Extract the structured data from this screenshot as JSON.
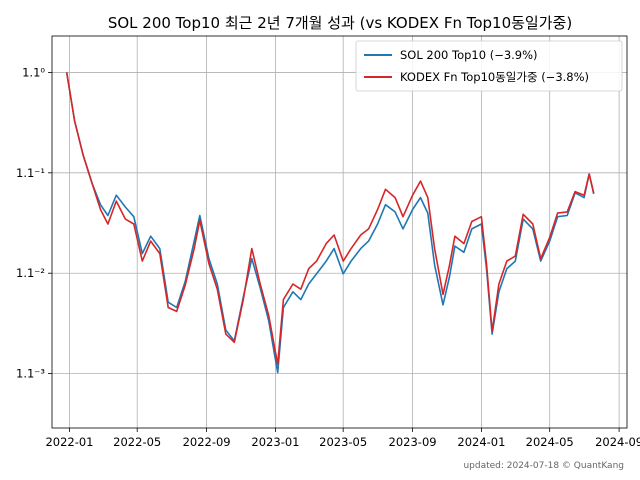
{
  "chart_data": {
    "type": "line",
    "title": "SOL 200 Top10 최근 2년 7개월 성과 (vs KODEX Fn Top10동일가중)",
    "xlabel": "",
    "ylabel": "",
    "y_scale": "log",
    "grid": true,
    "legend_position": "top-right",
    "x_ticks": [
      "2022-01",
      "2022-05",
      "2022-09",
      "2023-01",
      "2023-05",
      "2023-09",
      "2024-01",
      "2024-05",
      "2024-09"
    ],
    "y_ticks": [
      "1.1⁰",
      "1.1⁻¹",
      "1.1⁻²",
      "1.1⁻³"
    ],
    "xlim": [
      "2021-12-01",
      "2024-09-15"
    ],
    "ylim": [
      0.7135,
      1.0352
    ],
    "series": [
      {
        "name": "SOL 200 Top10 (−3.9%)",
        "color": "#1f77b4",
        "points": [
          [
            "2021-12-27",
            1.0
          ],
          [
            "2022-01-10",
            0.955
          ],
          [
            "2022-01-25",
            0.925
          ],
          [
            "2022-02-10",
            0.9
          ],
          [
            "2022-02-25",
            0.882
          ],
          [
            "2022-03-10",
            0.873
          ],
          [
            "2022-03-25",
            0.89
          ],
          [
            "2022-04-10",
            0.88
          ],
          [
            "2022-04-25",
            0.872
          ],
          [
            "2022-05-10",
            0.842
          ],
          [
            "2022-05-25",
            0.856
          ],
          [
            "2022-06-10",
            0.846
          ],
          [
            "2022-06-25",
            0.804
          ],
          [
            "2022-07-10",
            0.8
          ],
          [
            "2022-07-25",
            0.82
          ],
          [
            "2022-08-10",
            0.852
          ],
          [
            "2022-08-20",
            0.873
          ],
          [
            "2022-09-05",
            0.838
          ],
          [
            "2022-09-20",
            0.818
          ],
          [
            "2022-10-05",
            0.783
          ],
          [
            "2022-10-20",
            0.775
          ],
          [
            "2022-11-05",
            0.808
          ],
          [
            "2022-11-20",
            0.838
          ],
          [
            "2022-12-05",
            0.815
          ],
          [
            "2022-12-20",
            0.79
          ],
          [
            "2023-01-05",
            0.752
          ],
          [
            "2023-01-15",
            0.8
          ],
          [
            "2023-02-01",
            0.812
          ],
          [
            "2023-02-15",
            0.806
          ],
          [
            "2023-03-01",
            0.818
          ],
          [
            "2023-03-15",
            0.826
          ],
          [
            "2023-04-01",
            0.836
          ],
          [
            "2023-04-15",
            0.846
          ],
          [
            "2023-05-01",
            0.826
          ],
          [
            "2023-05-15",
            0.836
          ],
          [
            "2023-06-01",
            0.846
          ],
          [
            "2023-06-15",
            0.852
          ],
          [
            "2023-07-01",
            0.866
          ],
          [
            "2023-07-15",
            0.882
          ],
          [
            "2023-08-01",
            0.876
          ],
          [
            "2023-08-15",
            0.862
          ],
          [
            "2023-09-01",
            0.878
          ],
          [
            "2023-09-15",
            0.888
          ],
          [
            "2023-09-28",
            0.875
          ],
          [
            "2023-10-10",
            0.833
          ],
          [
            "2023-10-25",
            0.802
          ],
          [
            "2023-11-05",
            0.823
          ],
          [
            "2023-11-15",
            0.848
          ],
          [
            "2023-12-01",
            0.843
          ],
          [
            "2023-12-15",
            0.862
          ],
          [
            "2024-01-01",
            0.866
          ],
          [
            "2024-01-10",
            0.83
          ],
          [
            "2024-01-20",
            0.78
          ],
          [
            "2024-02-01",
            0.812
          ],
          [
            "2024-02-15",
            0.83
          ],
          [
            "2024-03-01",
            0.836
          ],
          [
            "2024-03-15",
            0.87
          ],
          [
            "2024-04-01",
            0.862
          ],
          [
            "2024-04-15",
            0.836
          ],
          [
            "2024-05-01",
            0.852
          ],
          [
            "2024-05-15",
            0.872
          ],
          [
            "2024-06-01",
            0.873
          ],
          [
            "2024-06-15",
            0.892
          ],
          [
            "2024-07-01",
            0.888
          ],
          [
            "2024-07-10",
            0.908
          ],
          [
            "2024-07-18",
            0.891
          ]
        ]
      },
      {
        "name": "KODEX Fn Top10동일가중 (−3.8%)",
        "color": "#d62728",
        "points": [
          [
            "2021-12-27",
            1.0
          ],
          [
            "2022-01-10",
            0.955
          ],
          [
            "2022-01-25",
            0.925
          ],
          [
            "2022-02-10",
            0.9
          ],
          [
            "2022-02-25",
            0.878
          ],
          [
            "2022-03-10",
            0.866
          ],
          [
            "2022-03-25",
            0.885
          ],
          [
            "2022-04-10",
            0.87
          ],
          [
            "2022-04-25",
            0.866
          ],
          [
            "2022-05-10",
            0.836
          ],
          [
            "2022-05-25",
            0.852
          ],
          [
            "2022-06-10",
            0.842
          ],
          [
            "2022-06-25",
            0.8
          ],
          [
            "2022-07-10",
            0.797
          ],
          [
            "2022-07-25",
            0.817
          ],
          [
            "2022-08-10",
            0.846
          ],
          [
            "2022-08-20",
            0.869
          ],
          [
            "2022-09-05",
            0.834
          ],
          [
            "2022-09-20",
            0.814
          ],
          [
            "2022-10-05",
            0.78
          ],
          [
            "2022-10-20",
            0.774
          ],
          [
            "2022-11-05",
            0.806
          ],
          [
            "2022-11-20",
            0.846
          ],
          [
            "2022-12-05",
            0.818
          ],
          [
            "2022-12-20",
            0.794
          ],
          [
            "2023-01-05",
            0.758
          ],
          [
            "2023-01-15",
            0.806
          ],
          [
            "2023-02-01",
            0.818
          ],
          [
            "2023-02-15",
            0.814
          ],
          [
            "2023-03-01",
            0.83
          ],
          [
            "2023-03-15",
            0.836
          ],
          [
            "2023-04-01",
            0.85
          ],
          [
            "2023-04-15",
            0.857
          ],
          [
            "2023-05-01",
            0.836
          ],
          [
            "2023-05-15",
            0.846
          ],
          [
            "2023-06-01",
            0.857
          ],
          [
            "2023-06-15",
            0.862
          ],
          [
            "2023-07-01",
            0.878
          ],
          [
            "2023-07-15",
            0.895
          ],
          [
            "2023-08-01",
            0.888
          ],
          [
            "2023-08-15",
            0.872
          ],
          [
            "2023-09-01",
            0.89
          ],
          [
            "2023-09-15",
            0.902
          ],
          [
            "2023-09-28",
            0.888
          ],
          [
            "2023-10-10",
            0.846
          ],
          [
            "2023-10-25",
            0.81
          ],
          [
            "2023-11-05",
            0.832
          ],
          [
            "2023-11-15",
            0.856
          ],
          [
            "2023-12-01",
            0.85
          ],
          [
            "2023-12-15",
            0.868
          ],
          [
            "2024-01-01",
            0.872
          ],
          [
            "2024-01-10",
            0.834
          ],
          [
            "2024-01-20",
            0.782
          ],
          [
            "2024-02-01",
            0.818
          ],
          [
            "2024-02-15",
            0.836
          ],
          [
            "2024-03-01",
            0.84
          ],
          [
            "2024-03-15",
            0.874
          ],
          [
            "2024-04-01",
            0.866
          ],
          [
            "2024-04-15",
            0.838
          ],
          [
            "2024-05-01",
            0.855
          ],
          [
            "2024-05-15",
            0.875
          ],
          [
            "2024-06-01",
            0.876
          ],
          [
            "2024-06-15",
            0.893
          ],
          [
            "2024-07-01",
            0.89
          ],
          [
            "2024-07-10",
            0.908
          ],
          [
            "2024-07-18",
            0.892
          ]
        ]
      }
    ]
  },
  "footer_text": "updated: 2024-07-18 © QuantKang"
}
